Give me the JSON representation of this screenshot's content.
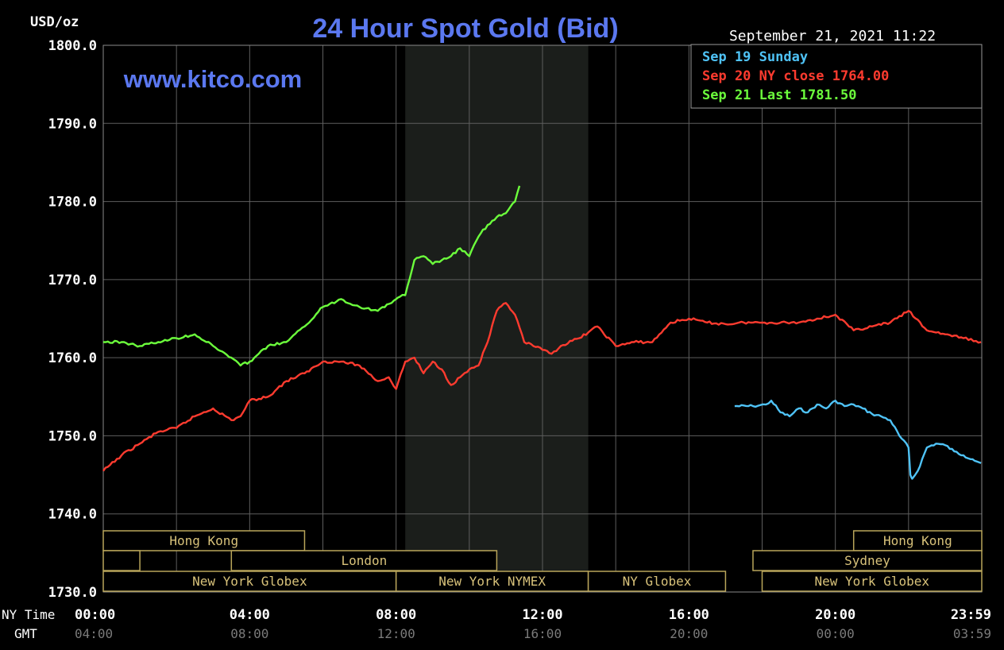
{
  "header": {
    "title": "24 Hour Spot Gold (Bid)",
    "unit": "USD/oz",
    "watermark": "www.kitco.com",
    "timestamp": "September 21, 2021 11:22"
  },
  "legend": [
    {
      "label": "Sep 19 Sunday",
      "color": "#4fc3f7"
    },
    {
      "label": "Sep 20 NY close 1764.00",
      "color": "#ff3b2f"
    },
    {
      "label": "Sep 21 Last 1781.50",
      "color": "#6cff3c"
    }
  ],
  "axis_rows": {
    "ny_label": "NY Time",
    "gmt_label": "GMT"
  },
  "sessions": [
    {
      "name": "Hong Kong",
      "start": 0,
      "end": 5.5,
      "row": 0
    },
    {
      "name": "Hong Kong",
      "start": 20.5,
      "end": 24,
      "row": 0
    },
    {
      "name": "",
      "start": 0,
      "end": 1,
      "row": 1
    },
    {
      "name": "London",
      "start": 3.5,
      "end": 10.75,
      "row": 1
    },
    {
      "name": "Sydney",
      "start": 17.75,
      "end": 24,
      "row": 1
    },
    {
      "name": "New York Globex",
      "start": 0,
      "end": 8.0,
      "row": 2
    },
    {
      "name": "New York NYMEX",
      "start": 8.0,
      "end": 13.25,
      "row": 2
    },
    {
      "name": "NY Globex",
      "start": 13.25,
      "end": 17.0,
      "row": 2
    },
    {
      "name": "New York Globex",
      "start": 18.0,
      "end": 24,
      "row": 2
    }
  ],
  "chart_data": {
    "type": "line",
    "title": "24 Hour Spot Gold (Bid)",
    "ylabel": "USD/oz",
    "ylim": [
      1730,
      1800
    ],
    "yticks": [
      "1730.0",
      "1740.0",
      "1750.0",
      "1760.0",
      "1770.0",
      "1780.0",
      "1790.0",
      "1800.0"
    ],
    "xlim": [
      0,
      24
    ],
    "xticks": [
      "00:00",
      "04:00",
      "08:00",
      "12:00",
      "16:00",
      "20:00",
      "23:59"
    ],
    "xticks_gmt": [
      "04:00",
      "08:00",
      "12:00",
      "16:00",
      "20:00",
      "00:00",
      "03:59"
    ],
    "grid": true,
    "shaded_region": [
      8.25,
      13.25
    ],
    "series": [
      {
        "name": "Sep 19 Sunday",
        "color": "#4fc3f7",
        "x": [
          17.25,
          17.75,
          18.1,
          18.25,
          18.5,
          18.75,
          19.0,
          19.25,
          19.5,
          19.75,
          20.0,
          20.25,
          20.5,
          20.75,
          21.0,
          21.25,
          21.5,
          21.75,
          22.0,
          22.05,
          22.1,
          22.25,
          22.5,
          22.75,
          23.0,
          23.25,
          23.5,
          23.75,
          23.98
        ],
        "y": [
          1753.8,
          1753.8,
          1754.0,
          1754.5,
          1753.0,
          1752.5,
          1753.5,
          1753.0,
          1754.0,
          1753.5,
          1754.5,
          1753.8,
          1754.0,
          1753.5,
          1752.8,
          1752.5,
          1752.0,
          1750.0,
          1748.5,
          1745.0,
          1744.5,
          1745.5,
          1748.5,
          1749.0,
          1748.8,
          1748.0,
          1747.5,
          1747.0,
          1746.5
        ]
      },
      {
        "name": "Sep 20 NY close",
        "color": "#ff3b2f",
        "x": [
          0,
          0.5,
          1.0,
          1.5,
          2.0,
          2.5,
          3.0,
          3.5,
          3.75,
          4.0,
          4.5,
          5.0,
          5.5,
          6.0,
          6.5,
          7.0,
          7.5,
          7.8,
          8.0,
          8.25,
          8.5,
          8.75,
          9.0,
          9.25,
          9.5,
          9.75,
          10.0,
          10.25,
          10.5,
          10.75,
          11.0,
          11.25,
          11.5,
          12.0,
          12.25,
          12.5,
          13.0,
          13.5,
          14.0,
          14.5,
          15.0,
          15.5,
          16.0,
          16.5,
          17.0,
          17.5,
          18.0,
          19.0,
          19.5,
          20.0,
          20.5,
          21.0,
          21.5,
          22.0,
          22.5,
          23.0,
          23.5,
          23.98
        ],
        "y": [
          1745.5,
          1747.5,
          1749.0,
          1750.5,
          1751.0,
          1752.5,
          1753.5,
          1752.0,
          1752.5,
          1754.5,
          1755.0,
          1757.0,
          1758.0,
          1759.5,
          1759.5,
          1759.0,
          1757.0,
          1757.5,
          1756.0,
          1759.5,
          1760.0,
          1758.0,
          1759.5,
          1758.5,
          1756.5,
          1757.5,
          1758.5,
          1759.0,
          1762.0,
          1766.0,
          1767.0,
          1765.5,
          1762.0,
          1761.0,
          1760.5,
          1761.5,
          1762.5,
          1764.0,
          1761.5,
          1762.0,
          1762.0,
          1764.5,
          1765.0,
          1764.5,
          1764.3,
          1764.5,
          1764.5,
          1764.5,
          1765.0,
          1765.5,
          1763.5,
          1764.0,
          1764.5,
          1766.0,
          1763.5,
          1763.0,
          1762.5,
          1762.0
        ]
      },
      {
        "name": "Sep 21 Last",
        "color": "#6cff3c",
        "x": [
          0,
          0.5,
          1.0,
          1.5,
          2.0,
          2.5,
          3.0,
          3.5,
          3.75,
          4.0,
          4.5,
          5.0,
          5.5,
          6.0,
          6.5,
          7.0,
          7.5,
          8.0,
          8.1,
          8.25,
          8.5,
          8.75,
          9.0,
          9.25,
          9.5,
          9.75,
          10.0,
          10.25,
          10.5,
          10.75,
          11.0,
          11.25,
          11.37
        ],
        "y": [
          1762.0,
          1762.0,
          1761.5,
          1762.0,
          1762.5,
          1763.0,
          1761.5,
          1760.0,
          1759.0,
          1759.5,
          1761.5,
          1762.0,
          1764.0,
          1766.5,
          1767.5,
          1766.5,
          1766.0,
          1767.5,
          1767.8,
          1768.0,
          1772.5,
          1773.0,
          1772.0,
          1772.5,
          1773.0,
          1774.0,
          1773.0,
          1775.5,
          1777.0,
          1778.0,
          1778.5,
          1780.0,
          1782.0
        ]
      }
    ]
  }
}
